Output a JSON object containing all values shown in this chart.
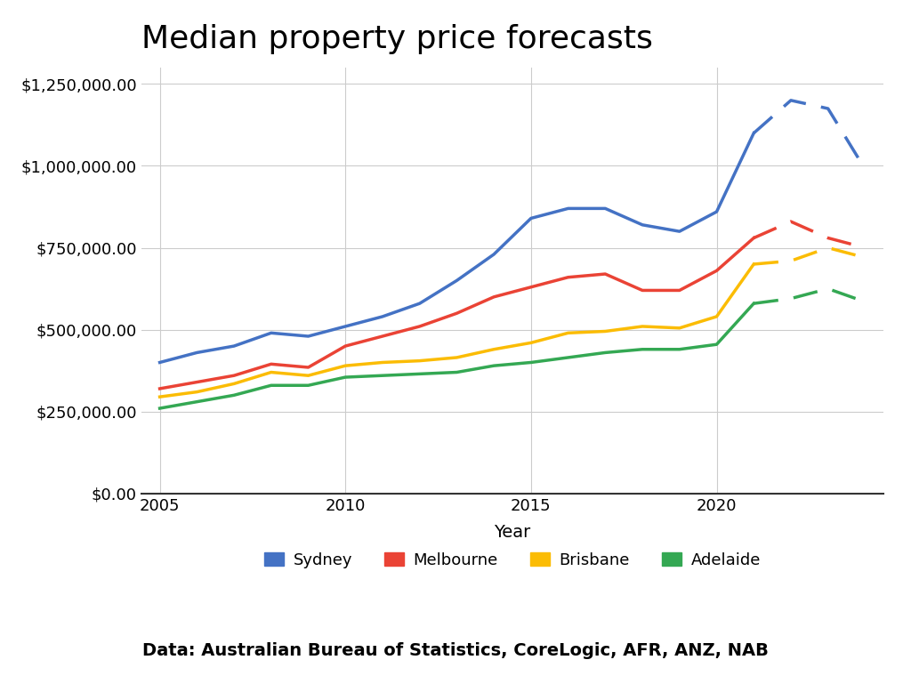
{
  "title": "Median property price forecasts",
  "xlabel": "Year",
  "source_text": "Data: Australian Bureau of Statistics, CoreLogic, AFR, ANZ, NAB",
  "background_color": "#ffffff",
  "grid_color": "#cccccc",
  "cities": [
    "Sydney",
    "Melbourne",
    "Brisbane",
    "Adelaide"
  ],
  "colors": [
    "#4472c4",
    "#ea4335",
    "#fbbc04",
    "#34a853"
  ],
  "solid_years": [
    2005,
    2006,
    2007,
    2008,
    2009,
    2010,
    2011,
    2012,
    2013,
    2014,
    2015,
    2016,
    2017,
    2018,
    2019,
    2020,
    2021
  ],
  "dashed_years": [
    2021,
    2022,
    2023,
    2024
  ],
  "solid_data": {
    "Sydney": [
      400000,
      430000,
      450000,
      490000,
      480000,
      510000,
      540000,
      580000,
      650000,
      730000,
      840000,
      870000,
      870000,
      820000,
      800000,
      860000,
      1100000
    ],
    "Melbourne": [
      320000,
      340000,
      360000,
      395000,
      385000,
      450000,
      480000,
      510000,
      550000,
      600000,
      630000,
      660000,
      670000,
      620000,
      620000,
      680000,
      780000
    ],
    "Brisbane": [
      295000,
      310000,
      335000,
      370000,
      360000,
      390000,
      400000,
      405000,
      415000,
      440000,
      460000,
      490000,
      495000,
      510000,
      505000,
      540000,
      700000
    ],
    "Adelaide": [
      260000,
      280000,
      300000,
      330000,
      330000,
      355000,
      360000,
      365000,
      370000,
      390000,
      400000,
      415000,
      430000,
      440000,
      440000,
      455000,
      580000
    ]
  },
  "dashed_data": {
    "Sydney": [
      1100000,
      1200000,
      1175000,
      990000
    ],
    "Melbourne": [
      780000,
      830000,
      780000,
      750000
    ],
    "Brisbane": [
      700000,
      710000,
      750000,
      720000
    ],
    "Adelaide": [
      580000,
      595000,
      625000,
      585000
    ]
  },
  "ylim": [
    0,
    1300000
  ],
  "yticks": [
    0,
    250000,
    500000,
    750000,
    1000000,
    1250000
  ],
  "xlim": [
    2004.5,
    2024.5
  ],
  "xticks": [
    2005,
    2010,
    2015,
    2020
  ],
  "linewidth": 2.5,
  "legend_fontsize": 13,
  "title_fontsize": 26,
  "axis_fontsize": 13,
  "source_fontsize": 14
}
